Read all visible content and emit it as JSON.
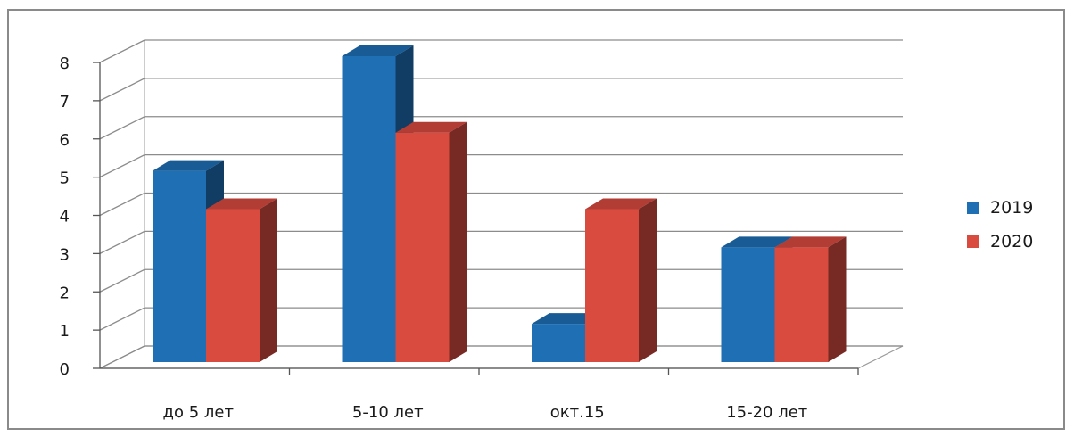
{
  "chart_data": {
    "type": "bar",
    "title": "",
    "xlabel": "",
    "ylabel": "",
    "categories": [
      "до 5 лет",
      "5-10 лет",
      "окт.15",
      "15-20 лет"
    ],
    "series": [
      {
        "name": "2019",
        "values": [
          5,
          8,
          1,
          3
        ],
        "color": "#1f6fb5"
      },
      {
        "name": "2020",
        "values": [
          4,
          6,
          4,
          3
        ],
        "color": "#d94a3f"
      }
    ],
    "ylim": [
      0,
      8
    ],
    "yticks": [
      "0",
      "1",
      "2",
      "3",
      "4",
      "5",
      "6",
      "7",
      "8"
    ],
    "grid": true,
    "style": "3d-clustered-column",
    "legend_position": "right"
  }
}
